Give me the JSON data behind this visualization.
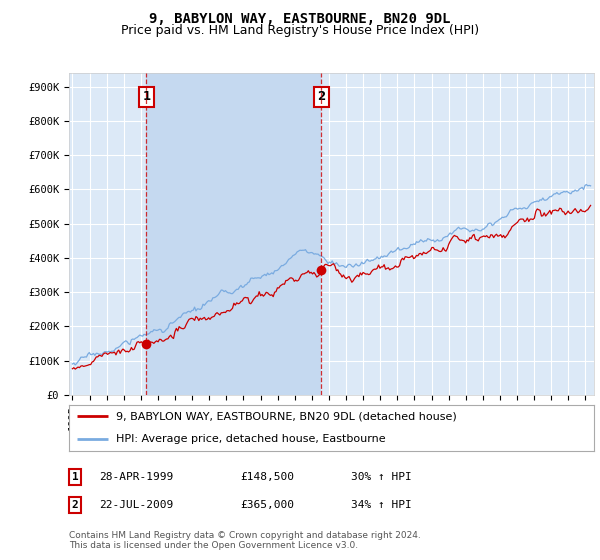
{
  "title": "9, BABYLON WAY, EASTBOURNE, BN20 9DL",
  "subtitle": "Price paid vs. HM Land Registry's House Price Index (HPI)",
  "ylim": [
    0,
    940000
  ],
  "yticks": [
    0,
    100000,
    200000,
    300000,
    400000,
    500000,
    600000,
    700000,
    800000,
    900000
  ],
  "ytick_labels": [
    "£0",
    "£100K",
    "£200K",
    "£300K",
    "£400K",
    "£500K",
    "£600K",
    "£700K",
    "£800K",
    "£900K"
  ],
  "xlim_start": 1994.8,
  "xlim_end": 2025.5,
  "plot_bg_color": "#dce9f7",
  "shade_color": "#c5d9f0",
  "red_line_color": "#cc0000",
  "blue_line_color": "#7aabe0",
  "sale1_year": 1999.32,
  "sale1_price": 148500,
  "sale2_year": 2009.55,
  "sale2_price": 365000,
  "legend_label_red": "9, BABYLON WAY, EASTBOURNE, BN20 9DL (detached house)",
  "legend_label_blue": "HPI: Average price, detached house, Eastbourne",
  "table_rows": [
    {
      "num": "1",
      "date": "28-APR-1999",
      "price": "£148,500",
      "hpi": "30% ↑ HPI"
    },
    {
      "num": "2",
      "date": "22-JUL-2009",
      "price": "£365,000",
      "hpi": "34% ↑ HPI"
    }
  ],
  "footer": "Contains HM Land Registry data © Crown copyright and database right 2024.\nThis data is licensed under the Open Government Licence v3.0.",
  "title_fontsize": 10,
  "subtitle_fontsize": 9,
  "tick_fontsize": 7.5,
  "legend_fontsize": 8,
  "table_fontsize": 8,
  "footer_fontsize": 6.5
}
